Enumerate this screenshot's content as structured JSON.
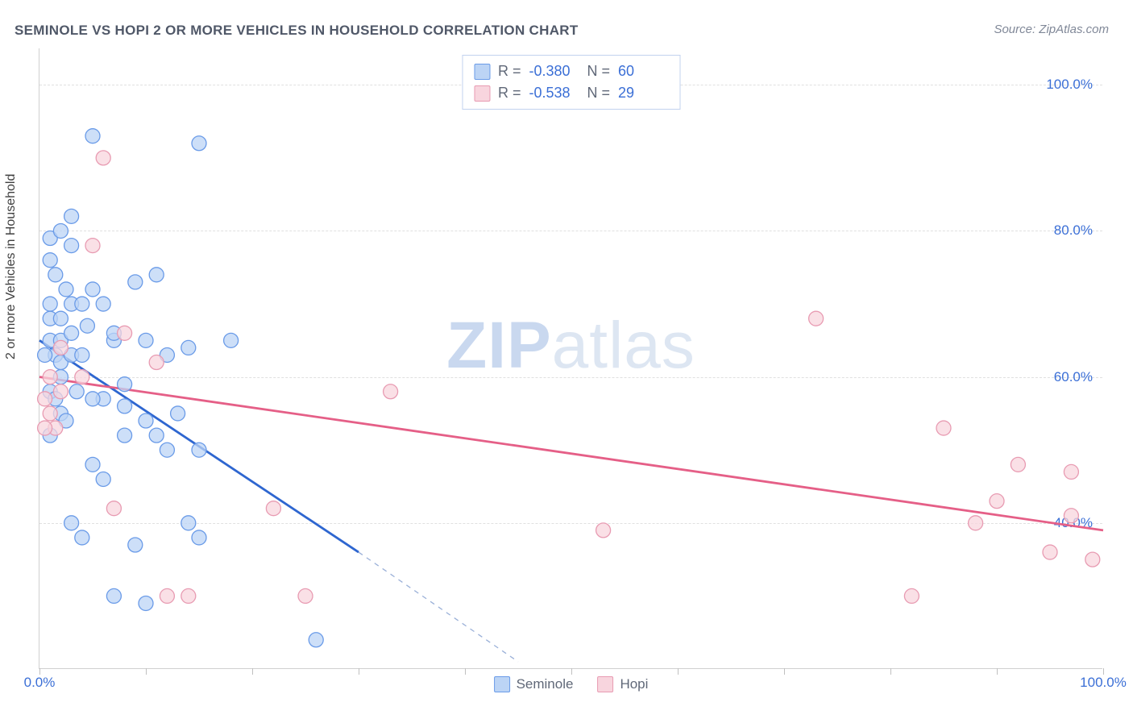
{
  "title": "SEMINOLE VS HOPI 2 OR MORE VEHICLES IN HOUSEHOLD CORRELATION CHART",
  "source": "Source: ZipAtlas.com",
  "watermark_bold": "ZIP",
  "watermark_rest": "atlas",
  "ylabel": "2 or more Vehicles in Household",
  "chart": {
    "type": "scatter",
    "xlim": [
      0,
      100
    ],
    "ylim": [
      20,
      105
    ],
    "y_gridlines": [
      40,
      60,
      80,
      100
    ],
    "y_tick_labels": [
      "40.0%",
      "60.0%",
      "80.0%",
      "100.0%"
    ],
    "x_ticks": [
      0,
      10,
      20,
      30,
      40,
      50,
      60,
      70,
      80,
      90,
      100
    ],
    "x_tick_labels": {
      "0": "0.0%",
      "100": "100.0%"
    },
    "background_color": "#ffffff",
    "grid_color": "#e0e0e0",
    "marker_radius": 9,
    "series": [
      {
        "name": "Seminole",
        "color_fill": "#bcd4f5",
        "color_stroke": "#6a9be8",
        "R": "-0.380",
        "N": "60",
        "regression": {
          "x1": 0,
          "y1": 65,
          "x2": 30,
          "y2": 36,
          "color": "#2e66d0",
          "dash_extend_to_x": 45,
          "dash_extend_to_y": 21
        },
        "points": [
          [
            1,
            79
          ],
          [
            1,
            76
          ],
          [
            1.5,
            74
          ],
          [
            1,
            70
          ],
          [
            1,
            68
          ],
          [
            2,
            68
          ],
          [
            1,
            65
          ],
          [
            2,
            65
          ],
          [
            1.5,
            63
          ],
          [
            0.5,
            63
          ],
          [
            3,
            82
          ],
          [
            2.5,
            72
          ],
          [
            5,
            72
          ],
          [
            3,
            70
          ],
          [
            4,
            70
          ],
          [
            3,
            66
          ],
          [
            2,
            62
          ],
          [
            3,
            63
          ],
          [
            2,
            60
          ],
          [
            1,
            58
          ],
          [
            2,
            55
          ],
          [
            1,
            52
          ],
          [
            1.5,
            57
          ],
          [
            5,
            93
          ],
          [
            15,
            92
          ],
          [
            9,
            73
          ],
          [
            11,
            74
          ],
          [
            7,
            65
          ],
          [
            7,
            66
          ],
          [
            10,
            65
          ],
          [
            12,
            63
          ],
          [
            14,
            64
          ],
          [
            6,
            57
          ],
          [
            8,
            56
          ],
          [
            10,
            54
          ],
          [
            8,
            52
          ],
          [
            11,
            52
          ],
          [
            12,
            50
          ],
          [
            15,
            50
          ],
          [
            18,
            65
          ],
          [
            6,
            46
          ],
          [
            3,
            40
          ],
          [
            4,
            38
          ],
          [
            14,
            40
          ],
          [
            15,
            38
          ],
          [
            7,
            30
          ],
          [
            10,
            29
          ],
          [
            9,
            37
          ],
          [
            5,
            57
          ],
          [
            4,
            63
          ],
          [
            3,
            78
          ],
          [
            2,
            80
          ],
          [
            4.5,
            67
          ],
          [
            6,
            70
          ],
          [
            3.5,
            58
          ],
          [
            2.5,
            54
          ],
          [
            8,
            59
          ],
          [
            5,
            48
          ],
          [
            26,
            24
          ],
          [
            13,
            55
          ]
        ]
      },
      {
        "name": "Hopi",
        "color_fill": "#f8d5de",
        "color_stroke": "#e89bb2",
        "R": "-0.538",
        "N": "29",
        "regression": {
          "x1": 0,
          "y1": 60,
          "x2": 100,
          "y2": 39,
          "color": "#e55f87"
        },
        "points": [
          [
            6,
            90
          ],
          [
            5,
            78
          ],
          [
            2,
            64
          ],
          [
            1,
            60
          ],
          [
            0.5,
            57
          ],
          [
            2,
            58
          ],
          [
            1,
            55
          ],
          [
            1.5,
            53
          ],
          [
            0.5,
            53
          ],
          [
            4,
            60
          ],
          [
            8,
            66
          ],
          [
            11,
            62
          ],
          [
            7,
            42
          ],
          [
            12,
            30
          ],
          [
            14,
            30
          ],
          [
            22,
            42
          ],
          [
            25,
            30
          ],
          [
            33,
            58
          ],
          [
            53,
            39
          ],
          [
            73,
            68
          ],
          [
            85,
            53
          ],
          [
            92,
            48
          ],
          [
            97,
            47
          ],
          [
            82,
            30
          ],
          [
            90,
            43
          ],
          [
            97,
            41
          ],
          [
            95,
            36
          ],
          [
            99,
            35
          ],
          [
            88,
            40
          ]
        ]
      }
    ]
  },
  "legend_bottom": [
    {
      "swatch": "blue",
      "label": "Seminole"
    },
    {
      "swatch": "pink",
      "label": "Hopi"
    }
  ]
}
